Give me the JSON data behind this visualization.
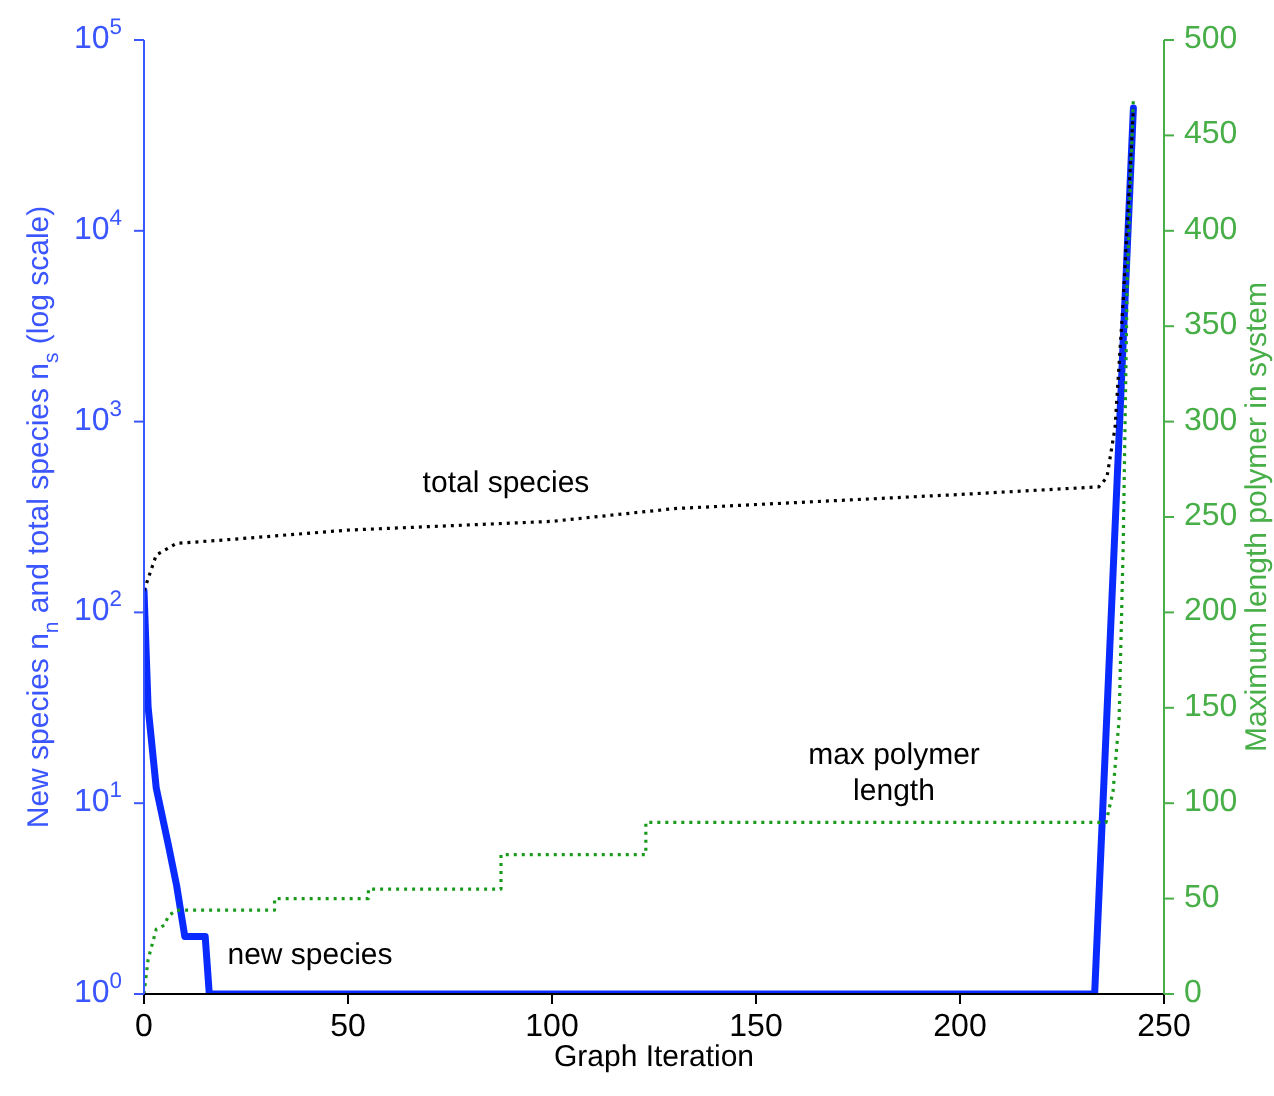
{
  "chart_data": {
    "type": "line",
    "xlabel": "Graph Iteration",
    "ylabel": "New species n$_{n}$ and total species n$_{s}$ (log scale)",
    "y2label": "Maximum length polymer in system",
    "xlim": [
      0,
      250
    ],
    "xticks": [
      0,
      50,
      100,
      150,
      200,
      250
    ],
    "ylim": [
      1,
      100000
    ],
    "yticks": [
      {
        "value": 1,
        "label": "10$^{0}$"
      },
      {
        "value": 10,
        "label": "10$^{1}$"
      },
      {
        "value": 100,
        "label": "10$^{2}$"
      },
      {
        "value": 1000,
        "label": "10$^{3}$"
      },
      {
        "value": 10000,
        "label": "10$^{4}$"
      },
      {
        "value": 100000,
        "label": "10$^{5}$"
      }
    ],
    "y2lim": [
      0,
      500
    ],
    "y2ticks": [
      0,
      50,
      100,
      150,
      200,
      250,
      300,
      350,
      400,
      450,
      500
    ],
    "log": "y",
    "grid": false,
    "legend": false,
    "marker": "none",
    "series": [
      {
        "name": "new species",
        "color": "#0a2bff",
        "axis": "y",
        "line_style": "solid",
        "x": [
          0,
          1,
          3,
          6,
          8,
          10,
          15,
          16,
          233,
          242.5
        ],
        "values": [
          130,
          32,
          12,
          6,
          3.7,
          2,
          2,
          1,
          1,
          44000
        ]
      },
      {
        "name": "total species",
        "color": "#000000",
        "axis": "y",
        "line_style": "dotted",
        "x": [
          0,
          3,
          8,
          20,
          50,
          100,
          130,
          200,
          234,
          236,
          238,
          240,
          242.5
        ],
        "values": [
          130,
          200,
          230,
          240,
          270,
          300,
          350,
          415,
          455,
          510,
          930,
          4300,
          44000
        ]
      },
      {
        "name": "max polymer\nlength",
        "color": "#1a9a1a",
        "axis": "y2",
        "line_style": "dotted",
        "x": [
          0,
          1,
          3,
          5,
          6,
          8,
          32,
          32,
          55,
          55,
          87.5,
          87.5,
          123,
          123,
          235.8,
          237.5,
          239,
          240,
          241,
          242.5
        ],
        "values": [
          0,
          18,
          34,
          36,
          41,
          44,
          44,
          50,
          50,
          55,
          55,
          73,
          73,
          90,
          90,
          106,
          144,
          235,
          375,
          470
        ]
      }
    ]
  }
}
